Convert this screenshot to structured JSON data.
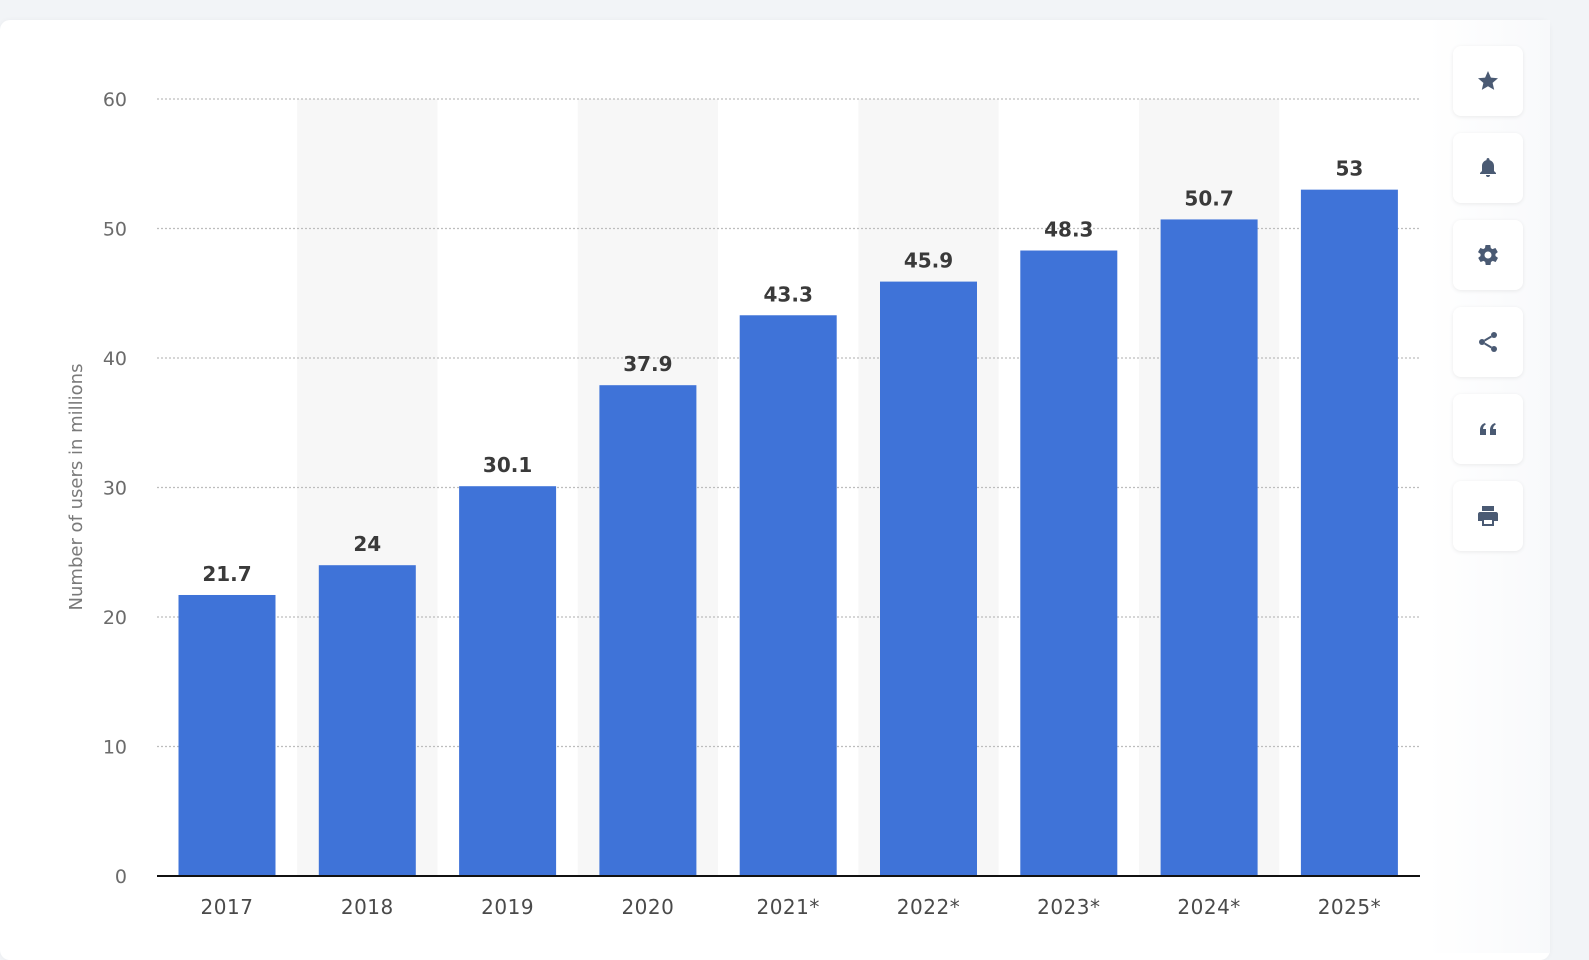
{
  "chart_data": {
    "type": "bar",
    "categories": [
      "2017",
      "2018",
      "2019",
      "2020",
      "2021*",
      "2022*",
      "2023*",
      "2024*",
      "2025*"
    ],
    "values": [
      21.7,
      24,
      30.1,
      37.9,
      43.3,
      45.9,
      48.3,
      50.7,
      53
    ],
    "value_labels": [
      "21.7",
      "24",
      "30.1",
      "37.9",
      "43.3",
      "45.9",
      "48.3",
      "50.7",
      "53"
    ],
    "ylabel": "Number of users in millions",
    "ylim": [
      0,
      60
    ],
    "yticks": [
      0,
      10,
      20,
      30,
      40,
      50,
      60
    ],
    "grid": true,
    "bar_color": "#3f73d8",
    "alt_band_color": "#f7f7f7"
  },
  "toolbar": {
    "items": [
      {
        "name": "favorite",
        "icon": "star-icon"
      },
      {
        "name": "notification",
        "icon": "bell-icon"
      },
      {
        "name": "settings",
        "icon": "gear-icon"
      },
      {
        "name": "share",
        "icon": "share-icon"
      },
      {
        "name": "cite",
        "icon": "quote-icon"
      },
      {
        "name": "print",
        "icon": "print-icon"
      }
    ]
  }
}
